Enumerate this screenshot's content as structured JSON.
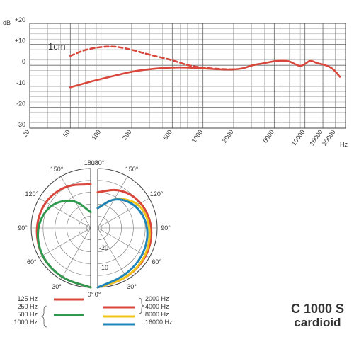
{
  "chart_data": [
    {
      "type": "line",
      "scale": "log-x",
      "ylabel": "dB",
      "xlabel": "Hz",
      "xlim": [
        20,
        25000
      ],
      "ylim": [
        -30,
        20
      ],
      "y_ticks": [
        "+20",
        "+10",
        "0",
        "-10",
        "-20",
        "-30"
      ],
      "x_ticks": [
        "20",
        "50",
        "100",
        "200",
        "500",
        "1000",
        "2000",
        "5000",
        "10000",
        "15000",
        "20000"
      ],
      "annotation": "1cm",
      "series": [
        {
          "color": "#d9463b",
          "style": "solid",
          "x": [
            50,
            70,
            100,
            150,
            200,
            300,
            500,
            700,
            1000,
            1500,
            2000,
            2500,
            3000,
            4000,
            5000,
            6000,
            7000,
            8000,
            9000,
            10000,
            11000,
            12000,
            13000,
            15000,
            18000,
            20000,
            22000
          ],
          "y": [
            -10.5,
            -8.5,
            -6.5,
            -4.5,
            -3,
            -1.8,
            -1,
            -1,
            -1.5,
            -2,
            -2,
            -1.5,
            0,
            1,
            2,
            2.2,
            2,
            0.5,
            -0.5,
            0.5,
            2.2,
            2,
            1,
            0.5,
            -1,
            -3,
            -5.5
          ]
        },
        {
          "color": "#d9463b",
          "style": "dashed",
          "x": [
            50,
            70,
            100,
            130,
            150,
            200,
            300,
            500,
            700,
            1000,
            1500,
            2000
          ],
          "y": [
            4.5,
            7.5,
            8.8,
            9,
            8.7,
            7.5,
            5,
            2.5,
            0,
            -1.2,
            -1.8,
            -2
          ]
        }
      ]
    },
    {
      "type": "polar",
      "angle_labels": [
        "0°",
        "30°",
        "60°",
        "90°",
        "120°",
        "150°",
        "180°"
      ],
      "r_labels": [
        "-10",
        "-20"
      ],
      "left_half": [
        {
          "label": "125 Hz, 250 Hz, 1000 Hz",
          "color": "#d9463b",
          "r_db": [
            0,
            -0.5,
            -1,
            -2,
            -3,
            -5,
            -8
          ]
        },
        {
          "label": "500 Hz",
          "color": "#2f9a4f",
          "r_db": [
            0,
            -0.5,
            -1,
            -2.5,
            -6,
            -13,
            -22
          ]
        }
      ],
      "right_half": [
        {
          "label": "2000 Hz, 4000 Hz",
          "color": "#d9463b",
          "r_db": [
            0,
            -0.5,
            -1,
            -2,
            -4,
            -7,
            -12
          ]
        },
        {
          "label": "8000 Hz",
          "color": "#f0c419",
          "r_db": [
            0,
            -0.5,
            -1.5,
            -3,
            -5,
            -12,
            -20
          ]
        },
        {
          "label": "16000 Hz",
          "color": "#1f84b8",
          "r_db": [
            0,
            -2,
            -3,
            -4,
            -7,
            -12,
            -20
          ]
        }
      ]
    }
  ],
  "legend": {
    "left": {
      "labels": [
        "125 Hz",
        "250 Hz",
        "500 Hz",
        "1000 Hz"
      ],
      "swatches": [
        {
          "color": "#d9463b"
        },
        {
          "color": "#2f9a4f"
        }
      ]
    },
    "right": {
      "labels": [
        "2000 Hz",
        "4000 Hz",
        "8000 Hz",
        "16000 Hz"
      ],
      "swatches": [
        {
          "color": "#d9463b"
        },
        {
          "color": "#f0c419"
        },
        {
          "color": "#1f84b8"
        }
      ]
    }
  },
  "title": {
    "model": "C 1000 S",
    "pattern": "cardioid"
  }
}
